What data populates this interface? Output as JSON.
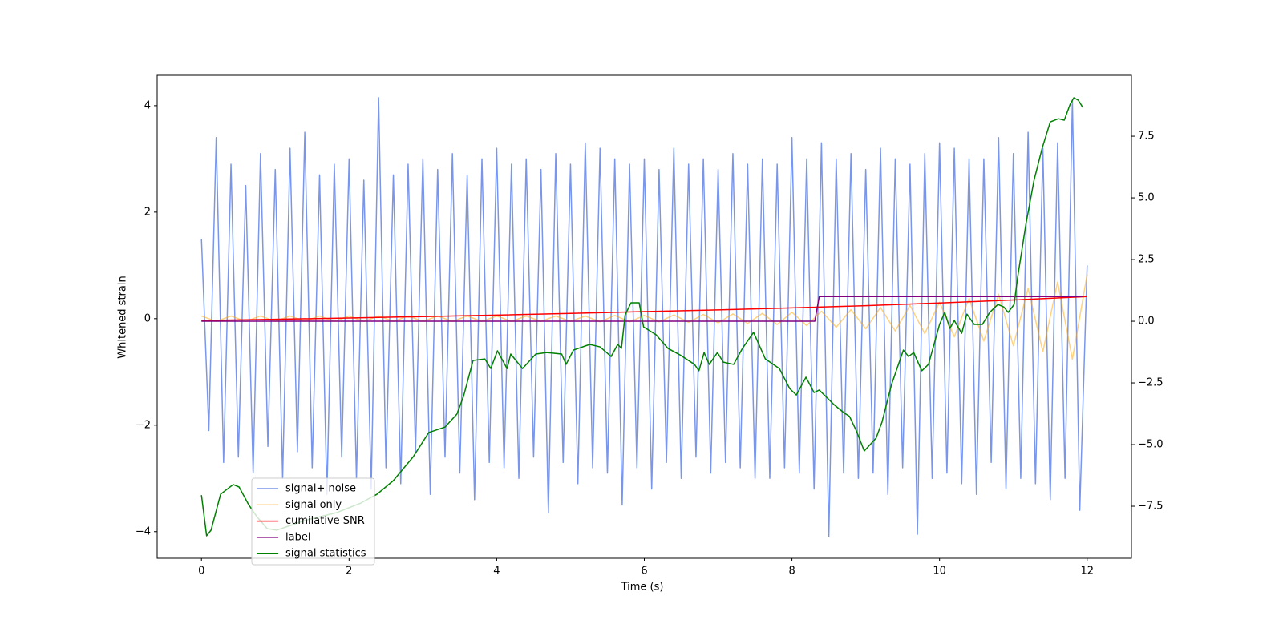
{
  "chart_data": {
    "type": "line",
    "xlabel": "Time (s)",
    "ylabel": "Whitened strain",
    "xlim": [
      -0.6,
      12.6
    ],
    "xticks": [
      0,
      2,
      4,
      6,
      8,
      10,
      12
    ],
    "ylim": [
      -4.5,
      4.57
    ],
    "yticks": [
      {
        "value": -4,
        "label": "−4"
      },
      {
        "value": -2,
        "label": "−2"
      },
      0,
      2,
      4
    ],
    "y2lim": [
      -9.61,
      9.97
    ],
    "y2ticks": [
      {
        "value": -7.5,
        "label": "−7.5"
      },
      {
        "value": -5,
        "label": "−5.0"
      },
      {
        "value": -2.5,
        "label": "−2.5"
      },
      {
        "value": 0,
        "label": "0.0"
      },
      {
        "value": 2.5,
        "label": "2.5"
      },
      {
        "value": 5,
        "label": "5.0"
      },
      {
        "value": 7.5,
        "label": "7.5"
      }
    ],
    "series": [
      {
        "name": "signal+ noise",
        "color": "#4169e1",
        "opacity": 0.7,
        "x": [
          0,
          0.1,
          0.2,
          0.3,
          0.4,
          0.5,
          0.6,
          0.7,
          0.8,
          0.9,
          1,
          1.1,
          1.2,
          1.3,
          1.4,
          1.5,
          1.6,
          1.7,
          1.8,
          1.9,
          2,
          2.1,
          2.2,
          2.3,
          2.4,
          2.5,
          2.6,
          2.7,
          2.8,
          2.9,
          3,
          3.1,
          3.2,
          3.3,
          3.4,
          3.5,
          3.6,
          3.7,
          3.8,
          3.9,
          4,
          4.1,
          4.2,
          4.3,
          4.4,
          4.5,
          4.6,
          4.7,
          4.8,
          4.9,
          5,
          5.1,
          5.2,
          5.3,
          5.4,
          5.5,
          5.6,
          5.7,
          5.8,
          5.9,
          6,
          6.1,
          6.2,
          6.3,
          6.4,
          6.5,
          6.6,
          6.7,
          6.8,
          6.9,
          7,
          7.1,
          7.2,
          7.3,
          7.4,
          7.5,
          7.6,
          7.7,
          7.8,
          7.9,
          8,
          8.1,
          8.2,
          8.3,
          8.4,
          8.5,
          8.6,
          8.7,
          8.8,
          8.9,
          9,
          9.1,
          9.2,
          9.3,
          9.4,
          9.5,
          9.6,
          9.7,
          9.8,
          9.9,
          10,
          10.1,
          10.2,
          10.3,
          10.4,
          10.5,
          10.6,
          10.7,
          10.8,
          10.9,
          11,
          11.1,
          11.2,
          11.3,
          11.4,
          11.5,
          11.6,
          11.7,
          11.8,
          11.9,
          12
        ],
        "values": [
          1.5,
          -2.1,
          3.4,
          -2.7,
          2.9,
          -2.6,
          2.5,
          -2.9,
          3.1,
          -2.4,
          2.8,
          -3.0,
          3.2,
          -2.5,
          3.5,
          -2.8,
          2.7,
          -3.3,
          2.9,
          -2.6,
          3.0,
          -3.0,
          2.6,
          -3.2,
          4.15,
          -2.8,
          2.7,
          -3.1,
          2.9,
          -2.5,
          3.0,
          -3.3,
          2.8,
          -2.6,
          3.1,
          -2.9,
          2.7,
          -3.4,
          3.0,
          -2.7,
          3.2,
          -2.8,
          2.9,
          -3.0,
          3.0,
          -2.6,
          2.8,
          -3.65,
          3.1,
          -2.7,
          2.9,
          -3.1,
          3.3,
          -2.8,
          3.2,
          -2.9,
          3.0,
          -3.5,
          2.9,
          -2.8,
          3.0,
          -3.2,
          2.8,
          -2.7,
          3.2,
          -3.0,
          2.9,
          -2.6,
          3.0,
          -2.9,
          2.8,
          -2.7,
          3.1,
          -2.8,
          2.9,
          -3.0,
          3.0,
          -3.0,
          2.9,
          -2.8,
          3.4,
          -2.9,
          3.0,
          -3.2,
          3.3,
          -4.1,
          3.0,
          -2.9,
          3.1,
          -3.0,
          2.8,
          -2.9,
          3.2,
          -3.3,
          3.0,
          -2.8,
          2.9,
          -4.05,
          3.1,
          -3.0,
          3.3,
          -2.9,
          3.2,
          -3.1,
          3.0,
          -3.3,
          3.0,
          -2.7,
          3.4,
          -3.2,
          3.1,
          -3.0,
          3.5,
          -3.1,
          3.2,
          -3.4,
          3.3,
          -3.0,
          4.1,
          -3.6,
          1.0
        ]
      },
      {
        "name": "signal only",
        "color": "#ffa500",
        "opacity": 0.5,
        "x": [
          0,
          0.2,
          0.4,
          0.6,
          0.8,
          1,
          1.2,
          1.4,
          1.6,
          1.8,
          2,
          2.2,
          2.4,
          2.6,
          2.8,
          3,
          3.2,
          3.4,
          3.6,
          3.8,
          4,
          4.2,
          4.4,
          4.6,
          4.8,
          5,
          5.2,
          5.4,
          5.6,
          5.8,
          6,
          6.2,
          6.4,
          6.6,
          6.8,
          7,
          7.2,
          7.4,
          7.6,
          7.8,
          8,
          8.2,
          8.4,
          8.6,
          8.8,
          9,
          9.2,
          9.4,
          9.6,
          9.8,
          10,
          10.2,
          10.4,
          10.6,
          10.8,
          11,
          11.2,
          11.4,
          11.6,
          11.8,
          12
        ],
        "values": [
          0.05,
          -0.05,
          0.05,
          -0.05,
          0.05,
          -0.05,
          0.05,
          -0.05,
          0.05,
          -0.05,
          0.05,
          -0.05,
          0.05,
          -0.05,
          0.05,
          -0.05,
          0.05,
          -0.05,
          0.05,
          -0.05,
          0.05,
          -0.05,
          0.05,
          -0.05,
          0.05,
          -0.05,
          0.05,
          -0.06,
          0.06,
          -0.06,
          0.06,
          -0.06,
          0.07,
          -0.07,
          0.08,
          -0.08,
          0.09,
          -0.09,
          0.1,
          -0.11,
          0.12,
          -0.13,
          0.14,
          -0.16,
          0.17,
          -0.19,
          0.21,
          -0.23,
          0.25,
          -0.28,
          0.31,
          -0.34,
          0.38,
          -0.42,
          0.46,
          -0.51,
          0.57,
          -0.62,
          0.69,
          -0.76,
          0.83
        ]
      },
      {
        "name": "cumilative SNR",
        "color": "#ff0000",
        "axis": "y2",
        "x": [
          0,
          1,
          2,
          3,
          4,
          5,
          6,
          7,
          8,
          9,
          10,
          11,
          12
        ],
        "values": [
          0.03,
          0.08,
          0.13,
          0.19,
          0.25,
          0.32,
          0.39,
          0.46,
          0.54,
          0.63,
          0.74,
          0.86,
          1.0
        ]
      },
      {
        "name": "label",
        "color": "#800080",
        "axis": "y2",
        "x": [
          0,
          8.31,
          8.37,
          11.94
        ],
        "values": [
          0,
          0,
          1,
          1
        ]
      },
      {
        "name": "signal statistics",
        "color": "#008000",
        "axis": "y2",
        "x": [
          0,
          0.07,
          0.13,
          0.26,
          0.43,
          0.51,
          0.64,
          0.75,
          0.89,
          1.02,
          1.4,
          1.83,
          2.16,
          2.38,
          2.6,
          2.87,
          3.08,
          3.3,
          3.46,
          3.55,
          3.68,
          3.84,
          3.92,
          4.01,
          4.14,
          4.19,
          4.35,
          4.53,
          4.68,
          4.88,
          4.94,
          5.04,
          5.26,
          5.4,
          5.55,
          5.64,
          5.69,
          5.74,
          5.82,
          5.93,
          5.99,
          6.16,
          6.32,
          6.48,
          6.68,
          6.74,
          6.81,
          6.88,
          6.99,
          7.07,
          7.21,
          7.33,
          7.48,
          7.64,
          7.83,
          7.97,
          8.06,
          8.19,
          8.3,
          8.37,
          8.57,
          8.7,
          8.78,
          8.87,
          8.98,
          9.14,
          9.22,
          9.35,
          9.51,
          9.58,
          9.65,
          9.76,
          9.85,
          10,
          10.07,
          10.14,
          10.2,
          10.3,
          10.37,
          10.47,
          10.58,
          10.68,
          10.79,
          10.87,
          10.93,
          11.01,
          11.06,
          11.17,
          11.28,
          11.39,
          11.5,
          11.61,
          11.69,
          11.77,
          11.82,
          11.88,
          11.94
        ],
        "values": [
          -7.05,
          -8.7,
          -8.47,
          -7.01,
          -6.62,
          -6.72,
          -7.44,
          -7.92,
          -8.41,
          -8.47,
          -8.08,
          -7.76,
          -7.37,
          -7.01,
          -6.46,
          -5.49,
          -4.51,
          -4.29,
          -3.77,
          -3.05,
          -1.59,
          -1.53,
          -1.92,
          -1.2,
          -1.92,
          -1.33,
          -1.92,
          -1.33,
          -1.27,
          -1.33,
          -1.75,
          -1.17,
          -0.94,
          -1.04,
          -1.43,
          -0.94,
          -1.1,
          0.26,
          0.75,
          0.75,
          -0.23,
          -0.55,
          -1.1,
          -1.36,
          -1.75,
          -2.01,
          -1.27,
          -1.75,
          -1.27,
          -1.66,
          -1.75,
          -1.1,
          -0.45,
          -1.53,
          -1.92,
          -2.73,
          -2.99,
          -2.27,
          -2.89,
          -2.79,
          -3.38,
          -3.7,
          -3.86,
          -4.42,
          -5.26,
          -4.74,
          -4.09,
          -2.56,
          -1.17,
          -1.43,
          -1.27,
          -2.01,
          -1.75,
          -0.13,
          0.36,
          -0.29,
          0.03,
          -0.49,
          0.29,
          -0.13,
          -0.13,
          0.36,
          0.68,
          0.58,
          0.36,
          0.68,
          1.82,
          3.93,
          5.71,
          7.01,
          8.08,
          8.21,
          8.15,
          8.8,
          9.06,
          8.96,
          8.67
        ]
      }
    ]
  }
}
